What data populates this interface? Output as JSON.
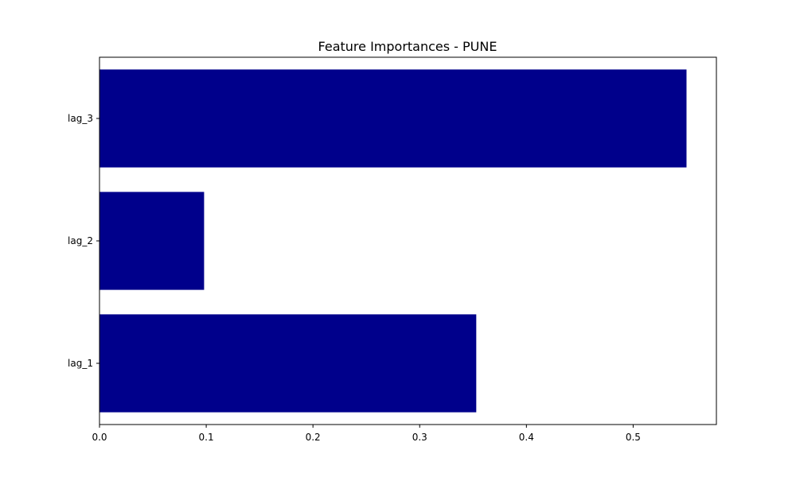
{
  "chart_data": {
    "type": "bar",
    "orientation": "horizontal",
    "title": "Feature Importances - PUNE",
    "xlabel": "",
    "ylabel": "",
    "categories": [
      "lag_1",
      "lag_2",
      "lag_3"
    ],
    "values": [
      0.353,
      0.098,
      0.55
    ],
    "xlim": [
      0.0,
      0.578
    ],
    "xticks": [
      0.0,
      0.1,
      0.2,
      0.3,
      0.4,
      0.5
    ],
    "xtick_labels": [
      "0.0",
      "0.1",
      "0.2",
      "0.3",
      "0.4",
      "0.5"
    ],
    "grid": false,
    "bar_color": "#00008b"
  }
}
